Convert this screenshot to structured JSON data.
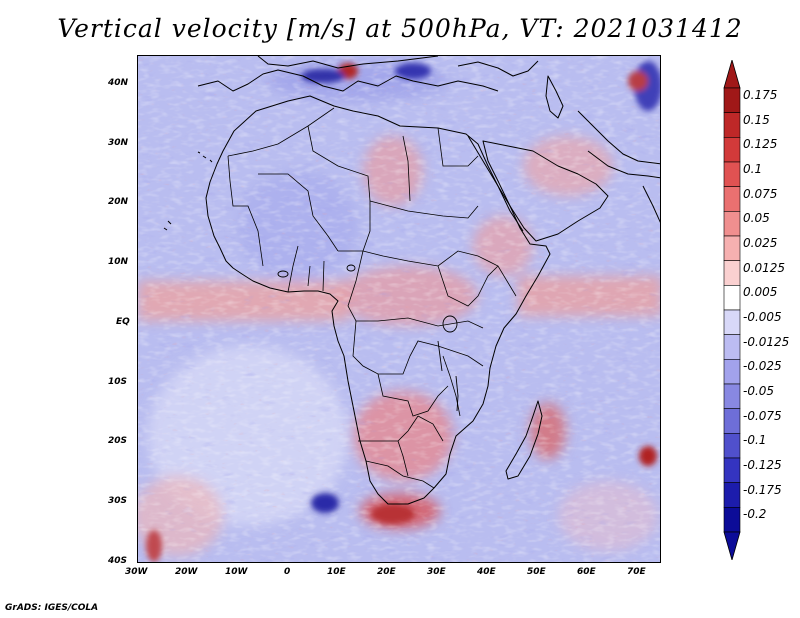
{
  "title": "Vertical velocity [m/s] at 500hPa, VT: 2021031412",
  "footer": "GrADS: IGES/COLA",
  "map": {
    "lon_range": [
      -30,
      76
    ],
    "lat_range": [
      -40,
      44
    ],
    "lon_ticks": [
      "30W",
      "20W",
      "10W",
      "0",
      "10E",
      "20E",
      "30E",
      "40E",
      "50E",
      "60E",
      "70E"
    ],
    "lat_ticks": [
      "40N",
      "30N",
      "20N",
      "10N",
      "EQ",
      "10S",
      "20S",
      "30S",
      "40S"
    ]
  },
  "colorbar": {
    "labels": [
      "0.175",
      "0.15",
      "0.125",
      "0.1",
      "0.075",
      "0.05",
      "0.025",
      "0.0125",
      "0.005",
      "-0.005",
      "-0.0125",
      "-0.025",
      "-0.05",
      "-0.075",
      "-0.1",
      "-0.125",
      "-0.175",
      "-0.2"
    ],
    "colors": [
      "#a01818",
      "#be2828",
      "#d23a3a",
      "#e05252",
      "#ea7070",
      "#f08f8f",
      "#f6b0b0",
      "#fad0d0",
      "#ffffff",
      "#d8d8f8",
      "#bcbcf2",
      "#a2a2ec",
      "#8888e2",
      "#6e6ed8",
      "#5050cc",
      "#3434c0",
      "#1c1cac",
      "#0c0c98"
    ]
  }
}
